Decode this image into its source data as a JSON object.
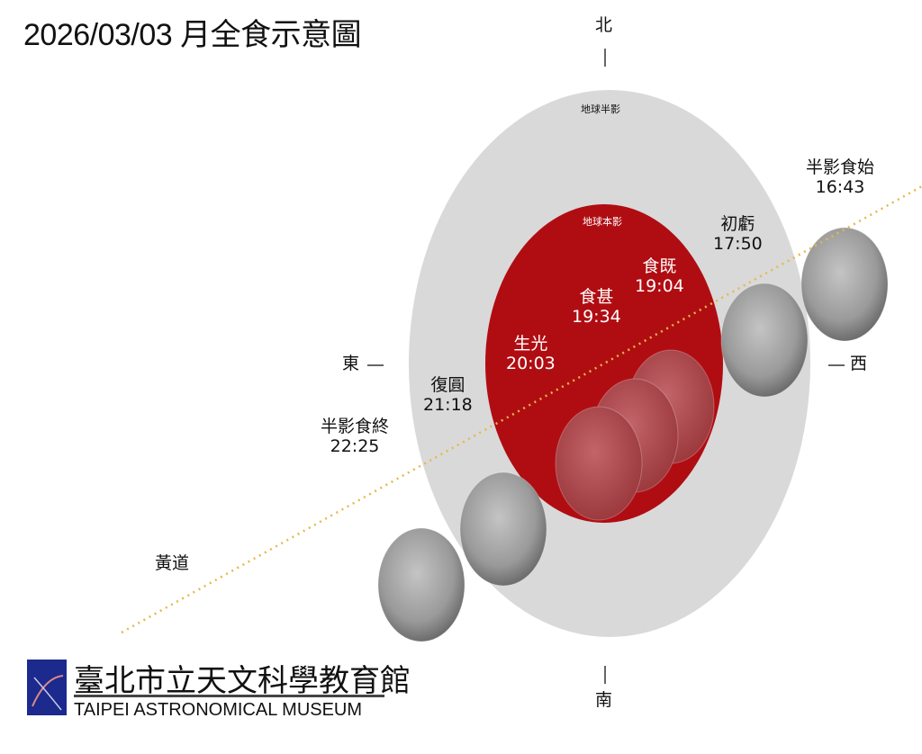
{
  "title": "2026/03/03 月全食示意圖",
  "directions": {
    "north": "北",
    "south": "南",
    "east": "東",
    "west": "西"
  },
  "regions": {
    "penumbra": "地球半影",
    "umbra": "地球本影"
  },
  "ecliptic": "黃道",
  "phases": [
    {
      "name": "半影食始",
      "time": "16:43"
    },
    {
      "name": "初虧",
      "time": "17:50"
    },
    {
      "name": "食既",
      "time": "19:04"
    },
    {
      "name": "食甚",
      "time": "19:34"
    },
    {
      "name": "生光",
      "time": "20:03"
    },
    {
      "name": "復圓",
      "time": "21:18"
    },
    {
      "name": "半影食終",
      "time": "22:25"
    }
  ],
  "logo": {
    "name_cn": "臺北市立天文科學教育館",
    "name_en": "TAIPEI ASTRONOMICAL MUSEUM"
  },
  "colors": {
    "penumbra": "#d9d9d9",
    "umbra": "#b00d12",
    "ecliptic": "#e6b84a",
    "moon": "#9a9a9a",
    "eclipsed_moon": "#b5484c",
    "logo_bg": "#1b2a8c"
  }
}
